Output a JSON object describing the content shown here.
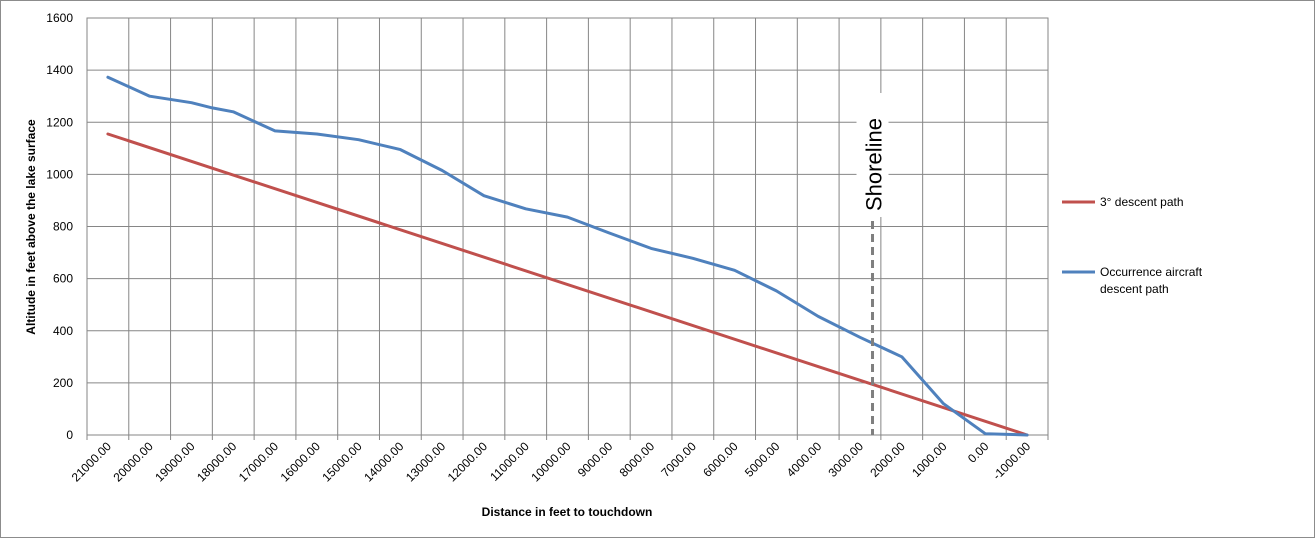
{
  "chart_data": {
    "type": "line",
    "xlabel": "Distance in feet to touchdown",
    "ylabel": "Altitude in feet above the lake surface",
    "x_categories": [
      "21000.00",
      "20000.00",
      "19000.00",
      "18000.00",
      "17000.00",
      "16000.00",
      "15000.00",
      "14000.00",
      "13000.00",
      "12000.00",
      "11000.00",
      "10000.00",
      "9000.00",
      "8000.00",
      "7000.00",
      "6000.00",
      "5000.00",
      "4000.00",
      "3000.00",
      "2000.00",
      "1000.00",
      "0.00",
      "-1000.00"
    ],
    "xlim": [
      21500,
      -1500
    ],
    "ylim": [
      0,
      1600
    ],
    "yticks": [
      0,
      200,
      400,
      600,
      800,
      1000,
      1200,
      1400,
      1600
    ],
    "grid": true,
    "legend_position": "right",
    "series": [
      {
        "name": "3° descent path",
        "color": "#c0504d",
        "points": [
          [
            21000,
            1155
          ],
          [
            -1000,
            0
          ]
        ]
      },
      {
        "name": "Occurrence aircraft descent path",
        "color": "#4f81bd",
        "points": [
          [
            21000,
            1373
          ],
          [
            20000,
            1300
          ],
          [
            19000,
            1275
          ],
          [
            18500,
            1255
          ],
          [
            18000,
            1240
          ],
          [
            17000,
            1167
          ],
          [
            16000,
            1155
          ],
          [
            15000,
            1133
          ],
          [
            14000,
            1095
          ],
          [
            13000,
            1015
          ],
          [
            12000,
            918
          ],
          [
            11000,
            868
          ],
          [
            10000,
            836
          ],
          [
            9000,
            775
          ],
          [
            8000,
            716
          ],
          [
            7000,
            678
          ],
          [
            6000,
            632
          ],
          [
            5000,
            553
          ],
          [
            4000,
            455
          ],
          [
            3000,
            375
          ],
          [
            2000,
            300
          ],
          [
            1000,
            120
          ],
          [
            0,
            5
          ],
          [
            -1000,
            0
          ]
        ]
      }
    ],
    "annotations": [
      {
        "text": "Shoreline",
        "x": 2700,
        "style": "dashed-vertical-line"
      }
    ]
  }
}
